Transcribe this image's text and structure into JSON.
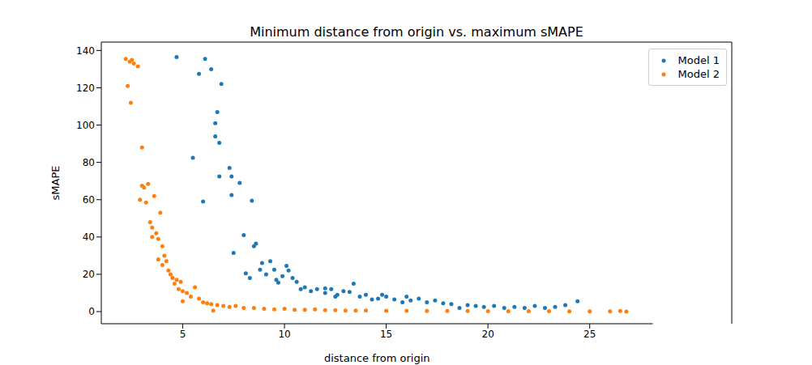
{
  "chart_data": {
    "type": "scatter",
    "title": "Minimum distance from origin vs. maximum sMAPE",
    "x_label": "distance from origin",
    "y_label": "sMAPE",
    "xlim": [
      1.0,
      28.1
    ],
    "xticks": [
      5,
      10,
      15,
      20,
      25
    ],
    "ylim": [
      -6.5,
      144.5
    ],
    "yticks": [
      0,
      20,
      40,
      60,
      80,
      100,
      120,
      140
    ],
    "grid": false,
    "legend": "upper right",
    "series": [
      {
        "name": "Model 1",
        "color": "#1f77b4",
        "x": [
          4.7,
          5.5,
          5.8,
          6.0,
          6.1,
          6.4,
          6.6,
          6.6,
          6.7,
          6.8,
          6.8,
          6.9,
          7.3,
          7.4,
          7.4,
          7.5,
          7.8,
          8.0,
          8.1,
          8.3,
          8.4,
          8.5,
          8.6,
          8.8,
          8.9,
          9.1,
          9.3,
          9.5,
          9.6,
          9.7,
          9.9,
          10.1,
          10.2,
          10.4,
          10.6,
          10.8,
          11.0,
          11.3,
          11.6,
          12.0,
          12.0,
          12.3,
          12.5,
          12.6,
          12.9,
          13.2,
          13.4,
          13.7,
          14.0,
          14.3,
          14.6,
          14.8,
          15.0,
          15.4,
          15.8,
          16.0,
          16.2,
          16.6,
          17.0,
          17.4,
          17.8,
          18.2,
          18.6,
          19.0,
          19.4,
          19.8,
          20.3,
          20.8,
          21.3,
          21.8,
          22.3,
          22.8,
          23.3,
          23.8,
          24.4
        ],
        "values": [
          136.5,
          82.5,
          127.5,
          59,
          135.5,
          130,
          94,
          101,
          107,
          90.5,
          72.5,
          122,
          77,
          72.5,
          62.5,
          31.5,
          69,
          41,
          20.5,
          18,
          59.5,
          35,
          36.5,
          22.5,
          26,
          20,
          27,
          22.5,
          17,
          15.5,
          19,
          24.5,
          22,
          18,
          16,
          12,
          13,
          11,
          12,
          10,
          12.5,
          12,
          8,
          9,
          11,
          10.5,
          15,
          8,
          9,
          6.5,
          7,
          9,
          8,
          6.5,
          5,
          8,
          6,
          7,
          5,
          6,
          4.5,
          4,
          2,
          3.5,
          3,
          2.5,
          3,
          2,
          2.5,
          2,
          3,
          2,
          2.5,
          3.5,
          5.5
        ]
      },
      {
        "name": "Model 2",
        "color": "#ff7f0e",
        "x": [
          2.2,
          2.3,
          2.4,
          2.45,
          2.5,
          2.6,
          2.8,
          2.9,
          3.0,
          3.0,
          3.1,
          3.2,
          3.3,
          3.4,
          3.5,
          3.5,
          3.6,
          3.7,
          3.8,
          3.8,
          3.9,
          4.0,
          4.0,
          4.1,
          4.2,
          4.3,
          4.4,
          4.5,
          4.6,
          4.7,
          4.8,
          4.9,
          5.0,
          5.0,
          5.2,
          5.4,
          5.6,
          5.8,
          6.0,
          6.2,
          6.4,
          6.5,
          6.7,
          7.0,
          7.3,
          7.6,
          8.0,
          8.5,
          9.0,
          9.5,
          10.0,
          10.5,
          11.0,
          11.5,
          12.0,
          12.5,
          13.0,
          13.5,
          14.0,
          15.0,
          16.0,
          17.0,
          18.0,
          19.0,
          20.0,
          21.0,
          22.0,
          23.0,
          24.0,
          25.0,
          26.0,
          26.5,
          26.8
        ],
        "values": [
          135.5,
          121,
          134,
          112,
          135,
          133,
          131.5,
          60,
          88,
          67.5,
          66.5,
          58.5,
          68.5,
          48,
          45,
          40,
          62,
          42,
          28,
          39,
          53,
          35,
          25,
          30,
          27,
          22,
          20,
          18,
          15,
          17,
          12,
          16,
          5.5,
          11,
          10,
          8,
          13,
          7,
          5,
          4.5,
          4,
          0.5,
          3.5,
          3,
          2.5,
          3,
          2,
          2,
          1.5,
          1.2,
          1.5,
          1,
          1,
          1.2,
          0.8,
          0.8,
          0.6,
          0.6,
          0.5,
          0.4,
          0.4,
          0.3,
          0.3,
          0.3,
          0.2,
          0.2,
          0.2,
          0.2,
          0.1,
          0.1,
          0.1,
          0.3,
          0
        ]
      }
    ]
  }
}
